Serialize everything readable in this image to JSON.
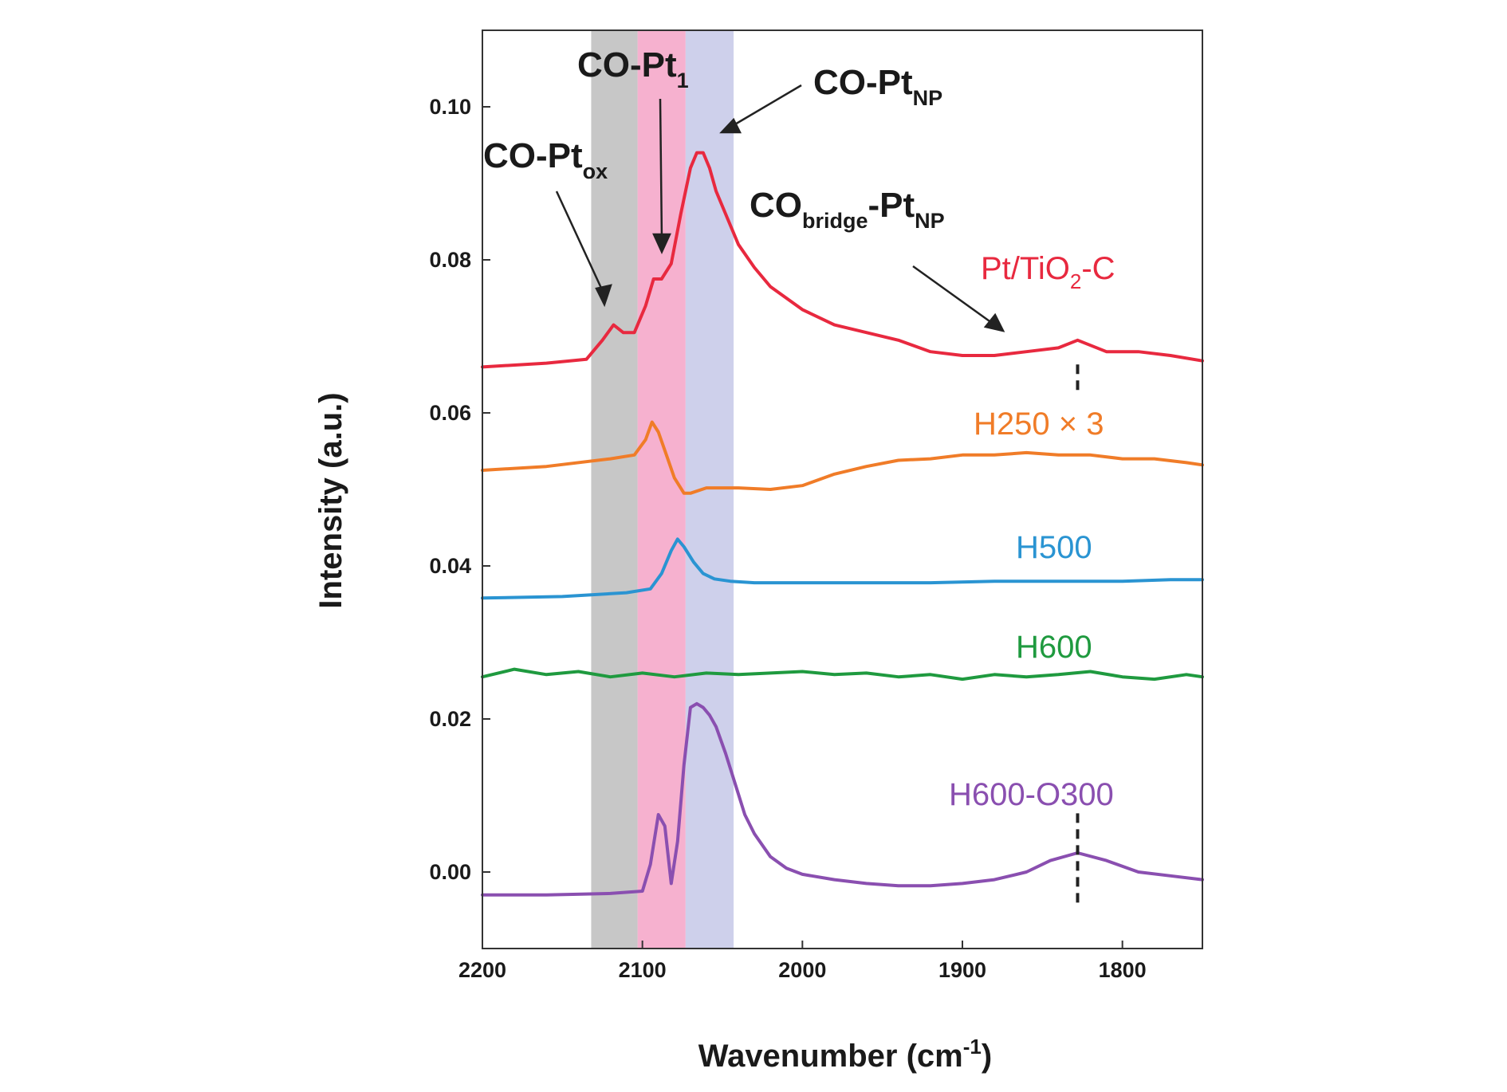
{
  "chart_data": {
    "type": "line",
    "xlabel": "Wavenumber (cm",
    "xlabel_sup": "-1",
    "xlabel_close": ")",
    "ylabel": "Intensity (a.u.)",
    "xlim": [
      2200,
      1750
    ],
    "ylim": [
      -0.01,
      0.11
    ],
    "x_ticks": [
      2200,
      2100,
      2000,
      1900,
      1800
    ],
    "x_tick_labels": [
      "2200",
      "2100",
      "2000",
      "1900",
      "1800"
    ],
    "y_ticks": [
      0.0,
      0.02,
      0.04,
      0.06,
      0.08,
      0.1
    ],
    "y_tick_labels": [
      "0.00",
      "0.02",
      "0.04",
      "0.06",
      "0.08",
      "0.10"
    ],
    "grid": false,
    "bands": [
      {
        "x_from": 2132,
        "x_to": 2103,
        "color": "#bdbdbd"
      },
      {
        "x_from": 2103,
        "x_to": 2073,
        "color": "#f5a3c7"
      },
      {
        "x_from": 2073,
        "x_to": 2043,
        "color": "#c6c8e8"
      }
    ],
    "reference_lines": [
      {
        "x": 1828,
        "y_from": 0.063,
        "y_to": 0.067
      },
      {
        "x": 1828,
        "y_from": -0.004,
        "y_to": 0.008
      }
    ],
    "annotations": [
      {
        "main": "CO-Pt",
        "sub": "ox",
        "suffix": ""
      },
      {
        "main": "CO-Pt",
        "sub": "1",
        "suffix": ""
      },
      {
        "main": "CO-Pt",
        "sub": "NP",
        "suffix": ""
      },
      {
        "main": "CO",
        "sub": "bridge",
        "suffix": "-Pt",
        "sub2": "NP"
      }
    ],
    "series_labels": [
      {
        "main": "Pt/TiO",
        "sub": "2",
        "suffix": "-C"
      },
      {
        "main": "H250 × 3"
      },
      {
        "main": "H500"
      },
      {
        "main": "H600"
      },
      {
        "main": "H600-O300"
      }
    ],
    "series": [
      {
        "color": "#e8293f",
        "x": [
          2200,
          2160,
          2135,
          2125,
          2118,
          2112,
          2105,
          2098,
          2093,
          2088,
          2082,
          2076,
          2070,
          2066,
          2062,
          2058,
          2054,
          2048,
          2040,
          2030,
          2020,
          2000,
          1980,
          1960,
          1940,
          1920,
          1900,
          1880,
          1860,
          1840,
          1828,
          1810,
          1790,
          1770,
          1750
        ],
        "y": [
          0.066,
          0.0665,
          0.067,
          0.0695,
          0.0715,
          0.0705,
          0.0705,
          0.074,
          0.0775,
          0.0775,
          0.0795,
          0.086,
          0.092,
          0.094,
          0.094,
          0.092,
          0.089,
          0.086,
          0.082,
          0.079,
          0.0765,
          0.0735,
          0.0715,
          0.0705,
          0.0695,
          0.068,
          0.0675,
          0.0675,
          0.068,
          0.0685,
          0.0695,
          0.068,
          0.068,
          0.0675,
          0.0668
        ]
      },
      {
        "color": "#f07c28",
        "x": [
          2200,
          2160,
          2120,
          2105,
          2098,
          2094,
          2090,
          2085,
          2080,
          2074,
          2070,
          2060,
          2040,
          2020,
          2000,
          1980,
          1960,
          1940,
          1920,
          1900,
          1880,
          1860,
          1840,
          1820,
          1800,
          1780,
          1760,
          1750
        ],
        "y": [
          0.0525,
          0.053,
          0.054,
          0.0545,
          0.0565,
          0.0588,
          0.0575,
          0.0545,
          0.0515,
          0.0495,
          0.0495,
          0.0502,
          0.0502,
          0.05,
          0.0505,
          0.052,
          0.053,
          0.0538,
          0.054,
          0.0545,
          0.0545,
          0.0548,
          0.0545,
          0.0545,
          0.054,
          0.054,
          0.0535,
          0.0532
        ]
      },
      {
        "color": "#2a94d2",
        "x": [
          2200,
          2150,
          2110,
          2095,
          2088,
          2082,
          2078,
          2074,
          2068,
          2062,
          2055,
          2045,
          2030,
          2000,
          1960,
          1920,
          1880,
          1840,
          1800,
          1770,
          1750
        ],
        "y": [
          0.0358,
          0.036,
          0.0365,
          0.037,
          0.039,
          0.042,
          0.0435,
          0.0425,
          0.0405,
          0.039,
          0.0383,
          0.038,
          0.0378,
          0.0378,
          0.0378,
          0.0378,
          0.038,
          0.038,
          0.038,
          0.0382,
          0.0382
        ]
      },
      {
        "color": "#1f9a3f",
        "x": [
          2200,
          2180,
          2160,
          2140,
          2120,
          2100,
          2080,
          2060,
          2040,
          2020,
          2000,
          1980,
          1960,
          1940,
          1920,
          1900,
          1880,
          1860,
          1840,
          1820,
          1800,
          1780,
          1760,
          1750
        ],
        "y": [
          0.0255,
          0.0265,
          0.0258,
          0.0262,
          0.0255,
          0.026,
          0.0255,
          0.026,
          0.0258,
          0.026,
          0.0262,
          0.0258,
          0.026,
          0.0255,
          0.0258,
          0.0252,
          0.0258,
          0.0255,
          0.0258,
          0.0262,
          0.0255,
          0.0252,
          0.0258,
          0.0255
        ]
      },
      {
        "color": "#8a4fb0",
        "x": [
          2200,
          2160,
          2120,
          2100,
          2095,
          2090,
          2086,
          2082,
          2078,
          2074,
          2070,
          2066,
          2062,
          2058,
          2054,
          2048,
          2042,
          2036,
          2030,
          2020,
          2010,
          2000,
          1980,
          1960,
          1940,
          1920,
          1900,
          1880,
          1860,
          1845,
          1828,
          1810,
          1790,
          1770,
          1750
        ],
        "y": [
          -0.003,
          -0.003,
          -0.0028,
          -0.0025,
          0.001,
          0.0075,
          0.006,
          -0.0015,
          0.004,
          0.014,
          0.0215,
          0.022,
          0.0215,
          0.0205,
          0.019,
          0.0155,
          0.0115,
          0.0075,
          0.005,
          0.002,
          0.0005,
          -0.0003,
          -0.001,
          -0.0015,
          -0.0018,
          -0.0018,
          -0.0015,
          -0.001,
          0.0,
          0.0015,
          0.0025,
          0.0015,
          0.0,
          -0.0005,
          -0.001
        ]
      }
    ]
  }
}
